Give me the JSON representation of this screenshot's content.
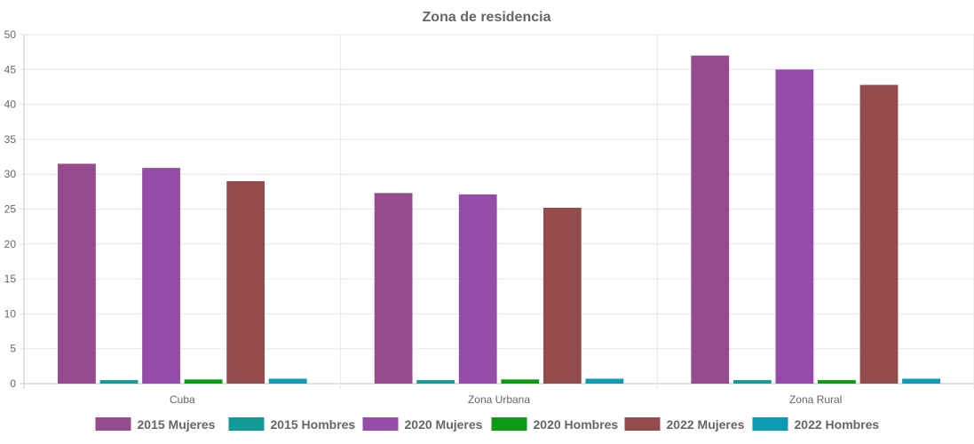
{
  "chart_data": {
    "type": "bar",
    "title": "Zona de residencia",
    "categories": [
      "Cuba",
      "Zona Urbana",
      "Zona Rural"
    ],
    "series": [
      {
        "name": "2015 Mujeres",
        "color": "#964B8E",
        "values": [
          31.5,
          27.3,
          47.0
        ]
      },
      {
        "name": "2015 Hombres",
        "color": "#129B96",
        "values": [
          0.5,
          0.5,
          0.5
        ]
      },
      {
        "name": "2020 Mujeres",
        "color": "#954BA8",
        "values": [
          30.9,
          27.1,
          45.0
        ]
      },
      {
        "name": "2020 Hombres",
        "color": "#0B9B17",
        "values": [
          0.6,
          0.6,
          0.5
        ]
      },
      {
        "name": "2022 Mujeres",
        "color": "#934B4B",
        "values": [
          29.0,
          25.2,
          42.8
        ]
      },
      {
        "name": "2022 Hombres",
        "color": "#0D9BB3",
        "values": [
          0.7,
          0.7,
          0.7
        ]
      }
    ],
    "yticks": [
      0,
      5,
      10,
      15,
      20,
      25,
      30,
      35,
      40,
      45,
      50
    ],
    "ylim": [
      0,
      50
    ],
    "grid": true,
    "legend_position": "bottom"
  }
}
